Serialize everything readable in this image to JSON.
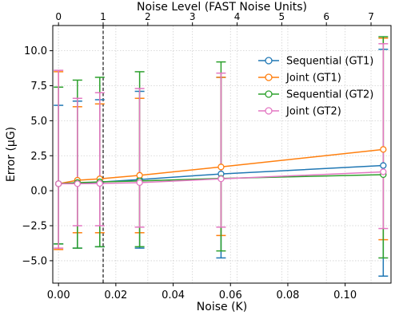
{
  "chart_data": {
    "type": "line",
    "xlabel": "Noise (K)",
    "x2label": "Noise Level (FAST Noise Units)",
    "ylabel": "Error (μG)",
    "xlim": [
      -0.002,
      0.116
    ],
    "ylim": [
      -6.6,
      11.8
    ],
    "x_ticks": [
      0.0,
      0.02,
      0.04,
      0.06,
      0.08,
      0.1
    ],
    "x_tick_labels": [
      "0.00",
      "0.02",
      "0.04",
      "0.06",
      "0.08",
      "0.10"
    ],
    "x2_ticks": [
      0,
      1,
      2,
      3,
      4,
      5,
      6,
      7
    ],
    "x2_tick_labels": [
      "0",
      "1",
      "2",
      "3",
      "4",
      "5",
      "6",
      "7"
    ],
    "y_ticks": [
      -5.0,
      -2.5,
      0.0,
      2.5,
      5.0,
      7.5,
      10.0
    ],
    "y_tick_labels": [
      "−5.0",
      "−2.5",
      "0.0",
      "2.5",
      "5.0",
      "7.5",
      "10.0"
    ],
    "x2_per_x": 64.2,
    "vline_x2": 1,
    "grid": true,
    "legend_position": "top-right",
    "x": [
      0.0,
      0.0066,
      0.0144,
      0.0283,
      0.0567,
      0.1133
    ],
    "series": [
      {
        "name": "Sequential (GT1)",
        "color": "#1f77b4",
        "values": [
          0.5,
          0.55,
          0.62,
          0.8,
          1.2,
          1.8
        ],
        "err_upper": [
          6.1,
          6.4,
          6.5,
          7.1,
          8.1,
          10.1
        ],
        "err_lower": [
          -3.8,
          -4.1,
          -4.0,
          -4.1,
          -4.8,
          -6.1
        ]
      },
      {
        "name": "Joint (GT1)",
        "color": "#ff7f0e",
        "values": [
          0.5,
          0.75,
          0.85,
          1.1,
          1.7,
          2.95
        ],
        "err_upper": [
          8.5,
          6.0,
          6.2,
          6.6,
          8.1,
          10.9
        ],
        "err_lower": [
          -4.2,
          -3.0,
          -3.0,
          -3.0,
          -3.2,
          -3.5
        ]
      },
      {
        "name": "Sequential (GT2)",
        "color": "#2ca02c",
        "values": [
          0.5,
          0.58,
          0.63,
          0.7,
          0.88,
          1.15
        ],
        "err_upper": [
          7.4,
          7.9,
          8.1,
          8.5,
          9.2,
          11.0
        ],
        "err_lower": [
          -3.8,
          -4.1,
          -4.0,
          -4.0,
          -4.3,
          -4.8
        ]
      },
      {
        "name": "Joint (GT2)",
        "color": "#e377c2",
        "values": [
          0.5,
          0.5,
          0.52,
          0.58,
          0.85,
          1.35
        ],
        "err_upper": [
          8.6,
          6.6,
          7.0,
          7.3,
          8.4,
          10.5
        ],
        "err_lower": [
          -4.1,
          -2.5,
          -2.5,
          -2.6,
          -2.6,
          -2.7
        ]
      }
    ]
  }
}
